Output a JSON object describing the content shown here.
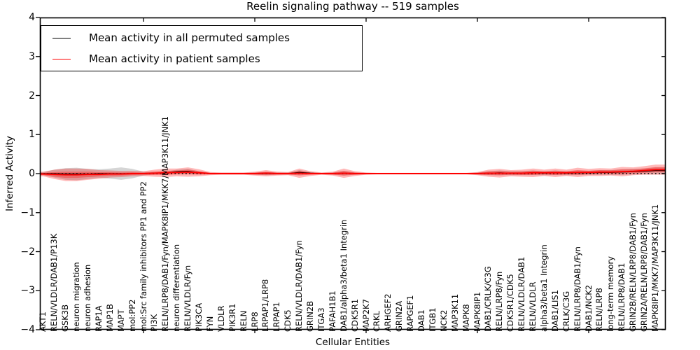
{
  "chart_data": {
    "type": "line",
    "title": "Reelin signaling pathway -- 519 samples",
    "xlabel": "Cellular Entities",
    "ylabel": "Inferred Activity",
    "ylim": [
      -4,
      4
    ],
    "yticks": [
      4,
      3,
      2,
      1,
      0,
      -1,
      -2,
      -3,
      -4
    ],
    "xticks_at_category_index": [
      10,
      20,
      30,
      40,
      50
    ],
    "grid": false,
    "zero_line": {
      "style": "dotted",
      "color": "#000000",
      "y": 0
    },
    "legend": {
      "position": "upper left",
      "entries": [
        {
          "label": "Mean activity in all permuted samples",
          "color": "#000000"
        },
        {
          "label": "Mean activity in patient samples",
          "color": "#ff0000"
        }
      ]
    },
    "categories": [
      "AKT1",
      "RELN/VLDLR/DAB1/P13K",
      "GSK3B",
      "neuron migration",
      "neuron adhesion",
      "RAP1A",
      "MAP1B",
      "MAPT",
      "mol:PP2",
      "mol:Src family inhibitors PP1 and PP2",
      "PI3K",
      "RELN/LRP8/DAB1/Fyn/MAPK8IP1/MKK7/MAP3K11/JNK1",
      "neuron differentiation",
      "RELN/VLDLR/Fyn",
      "PIK3CA",
      "FYN",
      "VLDLR",
      "PIK3R1",
      "RELN",
      "LRP8",
      "LRPAP1/LRP8",
      "LRPAP1",
      "CDK5",
      "RELN/VLDLR/DAB1/Fyn",
      "GRIN2B",
      "ITGA3",
      "PAFAH1B1",
      "DAB1/alpha3/beta1 Integrin",
      "CDK5R1",
      "MAP2K7",
      "CRKL",
      "ARHGEF2",
      "GRIN2A",
      "RAPGEF1",
      "DAB1",
      "ITGB1",
      "NCK2",
      "MAP3K11",
      "MAPK8",
      "MAPK8IP1",
      "DAB1/CRLK/C3G",
      "RELN/LRP8/Fyn",
      "CDK5R1/CDK5",
      "RELN/VLDLR/DAB1",
      "RELN/VLDLR",
      "alpha3/beta1 Integrin",
      "DAB1/LIS1",
      "CRLK/C3G",
      "RELN/LRP8/DAB1/Fyn",
      "DAB1/NCK2",
      "RELN/LRP8",
      "long-term memory",
      "RELN/LRP8/DAB1",
      "GRIN2B/RELN/LRP8/DAB1/Fyn",
      "GRIN2A/RELN/LRP8/DAB1/Fyn",
      "MAPK8IP1/MKK7/MAP3K11/JNK1"
    ],
    "series": [
      {
        "name": "Mean activity in all permuted samples",
        "color": "#000000",
        "values": [
          0,
          0,
          -0.01,
          -0.01,
          -0.01,
          0,
          0,
          0,
          0,
          0,
          0.01,
          0.02,
          0.05,
          0.06,
          0.02,
          0,
          0,
          0,
          0,
          0,
          0,
          0,
          0,
          0.03,
          0.01,
          0,
          0,
          0.01,
          0,
          0,
          0,
          0,
          0,
          0,
          0,
          0,
          0,
          0,
          0,
          0,
          0.01,
          0.02,
          0.01,
          0.01,
          0.02,
          0.01,
          0.02,
          0.01,
          0.02,
          0.02,
          0.03,
          0.03,
          0.04,
          0.05,
          0.06,
          0.08
        ]
      },
      {
        "name": "Mean activity in patient samples",
        "color": "#ff0000",
        "values": [
          -0.01,
          -0.02,
          -0.03,
          -0.03,
          -0.02,
          -0.02,
          -0.01,
          -0.01,
          0,
          0,
          0.01,
          0.02,
          0.03,
          0.04,
          0.02,
          0,
          0,
          0,
          0,
          0,
          0.01,
          0,
          0,
          0.01,
          0,
          0,
          0,
          0.01,
          0,
          0,
          0,
          0,
          0,
          0,
          0,
          0,
          0,
          0,
          0,
          0,
          0.01,
          0.01,
          0.01,
          0.01,
          0.02,
          0.02,
          0.02,
          0.02,
          0.03,
          0.03,
          0.04,
          0.04,
          0.05,
          0.06,
          0.08,
          0.1
        ]
      }
    ],
    "bands": [
      {
        "name": "permuted-samples-spread",
        "color": "#888888",
        "opacity": 0.35,
        "halfwidth": [
          0.04,
          0.1,
          0.15,
          0.16,
          0.13,
          0.11,
          0.13,
          0.16,
          0.12,
          0.05,
          0.03,
          0.03,
          0.05,
          0.06,
          0.04,
          0.02,
          0.02,
          0.02,
          0.02,
          0.03,
          0.04,
          0.03,
          0.03,
          0.06,
          0.03,
          0.02,
          0.03,
          0.06,
          0.03,
          0.02,
          0.015,
          0.015,
          0.015,
          0.015,
          0.015,
          0.015,
          0.015,
          0.015,
          0.015,
          0.03,
          0.05,
          0.06,
          0.05,
          0.05,
          0.06,
          0.05,
          0.06,
          0.05,
          0.06,
          0.05,
          0.06,
          0.06,
          0.07,
          0.07,
          0.07,
          0.08
        ]
      },
      {
        "name": "patient-samples-spread",
        "color": "#ff0000",
        "opacity": 0.28,
        "halfwidth": [
          0.06,
          0.12,
          0.16,
          0.16,
          0.14,
          0.11,
          0.09,
          0.08,
          0.07,
          0.06,
          0.09,
          0.11,
          0.1,
          0.12,
          0.09,
          0.04,
          0.03,
          0.03,
          0.03,
          0.05,
          0.08,
          0.05,
          0.04,
          0.12,
          0.06,
          0.03,
          0.05,
          0.12,
          0.06,
          0.03,
          0.02,
          0.02,
          0.02,
          0.02,
          0.02,
          0.02,
          0.02,
          0.02,
          0.02,
          0.04,
          0.09,
          0.11,
          0.08,
          0.09,
          0.11,
          0.08,
          0.11,
          0.08,
          0.12,
          0.09,
          0.1,
          0.09,
          0.12,
          0.1,
          0.11,
          0.13
        ]
      }
    ]
  }
}
